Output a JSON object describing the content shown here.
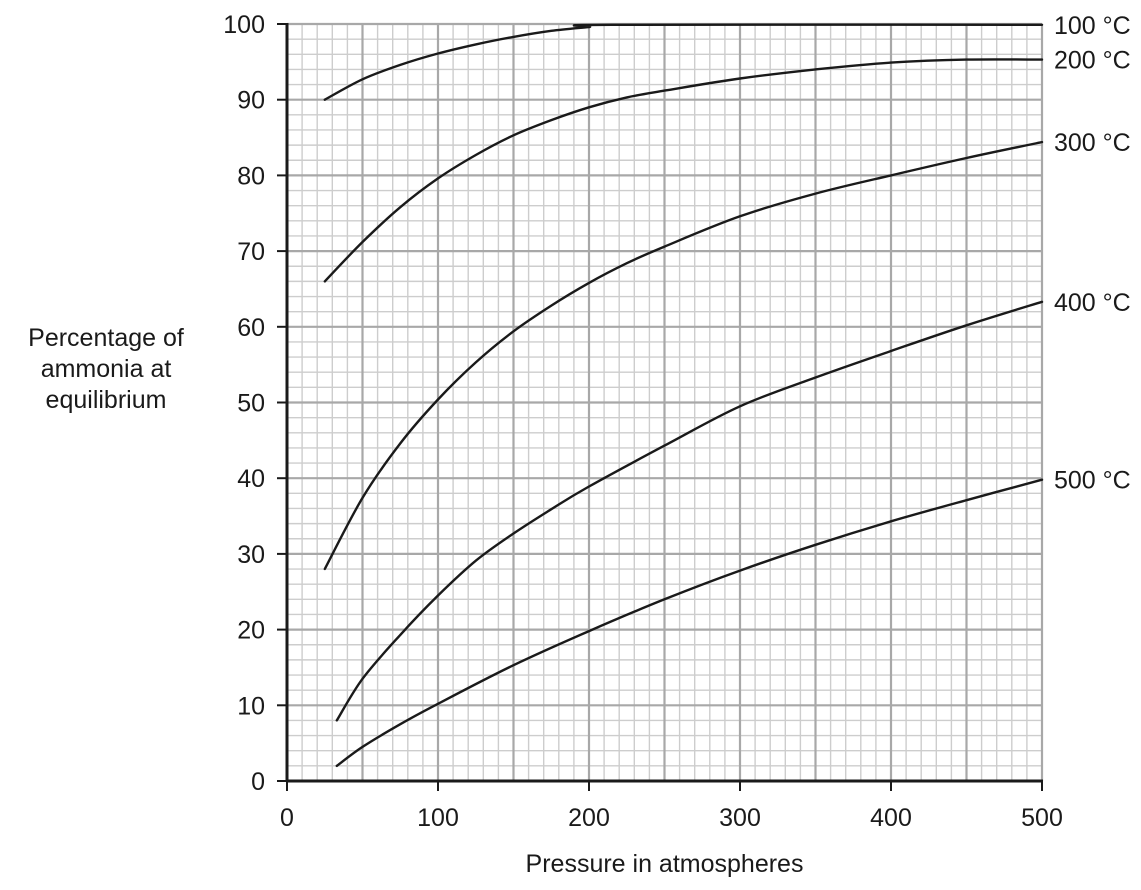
{
  "chart_data": {
    "type": "line",
    "xlabel": "Pressure in atmospheres",
    "ylabel": [
      "Percentage of",
      "ammonia at",
      "equilibrium"
    ],
    "xlim": [
      0,
      500
    ],
    "ylim": [
      0,
      100
    ],
    "x_ticks": [
      0,
      100,
      200,
      300,
      400,
      500
    ],
    "y_ticks": [
      0,
      10,
      20,
      30,
      40,
      50,
      60,
      70,
      80,
      90,
      100
    ],
    "grid": true,
    "series": [
      {
        "name": "100 °C",
        "x": [
          25,
          50,
          75,
          100,
          125,
          150,
          175,
          200,
          215,
          500
        ],
        "y": [
          90,
          92.7,
          94.6,
          96.1,
          97.3,
          98.3,
          99.1,
          99.6,
          99.9,
          99.9
        ]
      },
      {
        "name": "200 °C",
        "x": [
          25,
          50,
          75,
          100,
          125,
          150,
          175,
          200,
          225,
          250,
          300,
          350,
          400,
          450,
          500
        ],
        "y": [
          66,
          71.2,
          75.8,
          79.6,
          82.7,
          85.3,
          87.3,
          89.0,
          90.3,
          91.2,
          92.8,
          94.0,
          94.9,
          95.3,
          95.3
        ]
      },
      {
        "name": "300 °C",
        "x": [
          25,
          50,
          75,
          100,
          125,
          150,
          175,
          200,
          225,
          250,
          300,
          350,
          400,
          450,
          500
        ],
        "y": [
          28,
          37.4,
          44.6,
          50.4,
          55.3,
          59.4,
          62.8,
          65.8,
          68.4,
          70.6,
          74.6,
          77.6,
          80.0,
          82.3,
          84.4
        ]
      },
      {
        "name": "400 °C",
        "x": [
          33,
          50,
          75,
          100,
          125,
          150,
          175,
          200,
          250,
          300,
          350,
          400,
          450,
          500
        ],
        "y": [
          8,
          13.5,
          19.3,
          24.5,
          29.1,
          32.7,
          35.9,
          38.9,
          44.3,
          49.5,
          53.3,
          56.8,
          60.2,
          63.3
        ]
      },
      {
        "name": "500 °C",
        "x": [
          33,
          50,
          75,
          100,
          150,
          200,
          250,
          300,
          350,
          400,
          450,
          500
        ],
        "y": [
          2,
          4.5,
          7.5,
          10.2,
          15.3,
          19.8,
          24.0,
          27.8,
          31.2,
          34.3,
          37.1,
          39.8
        ]
      }
    ]
  }
}
